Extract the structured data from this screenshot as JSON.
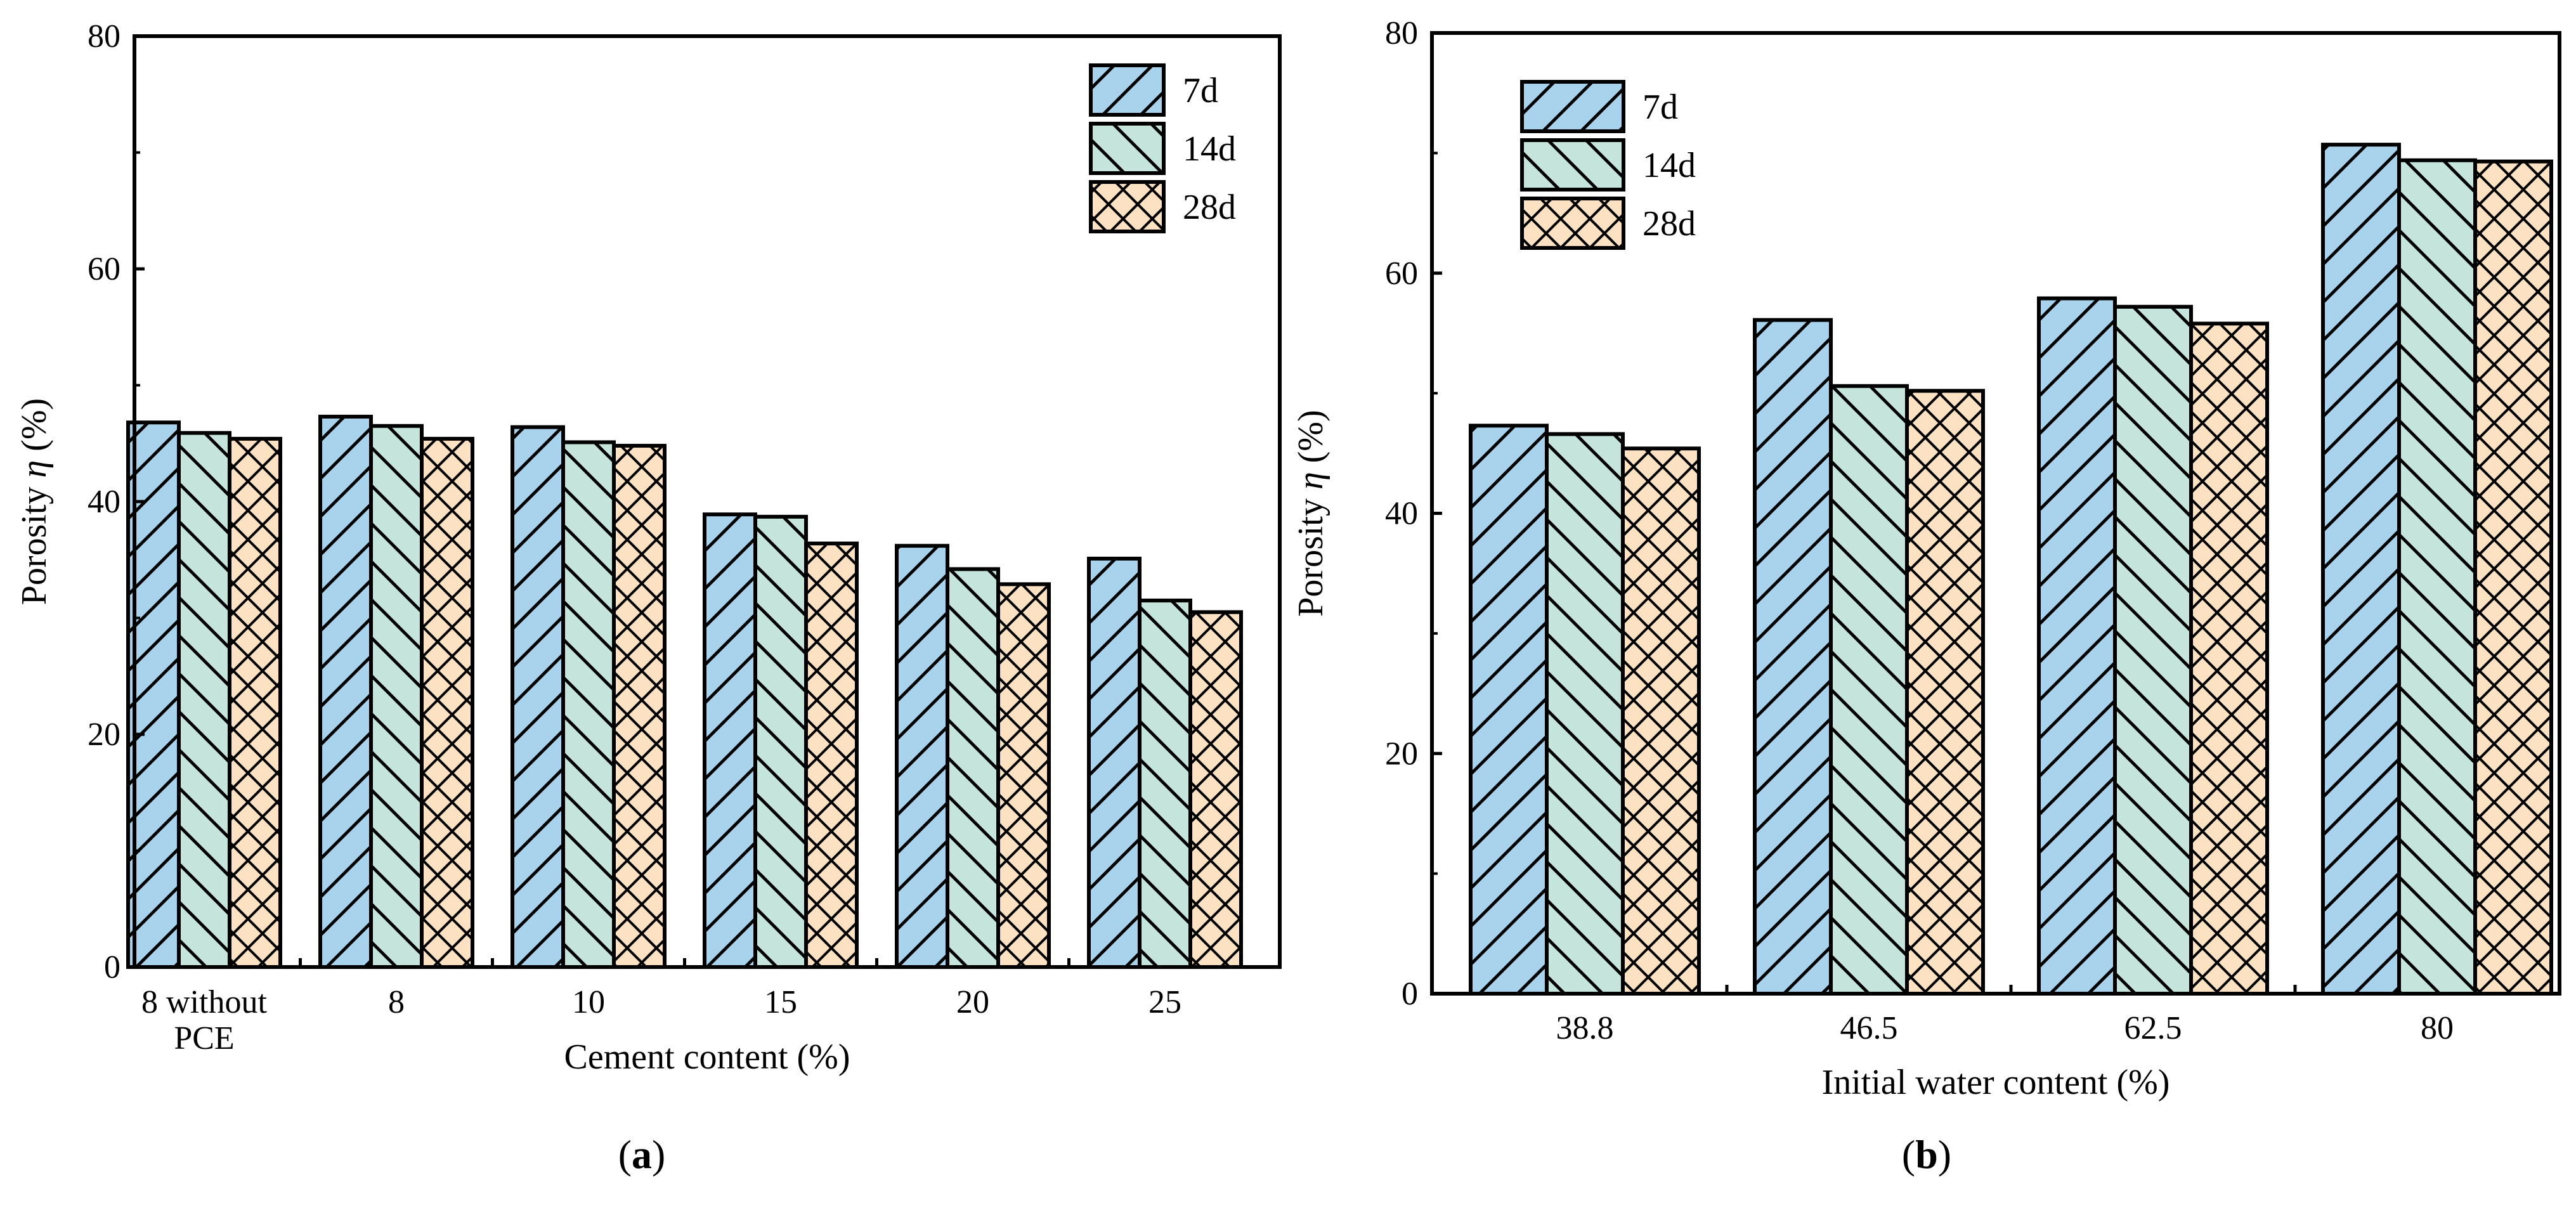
{
  "chart_data": [
    {
      "id": "a",
      "type": "bar",
      "panel_label": "a",
      "title": "",
      "xlabel": "Cement content (%)",
      "ylabel": "Porosity η (%)",
      "ylabel_parts": [
        "Porosity ",
        "η",
        " (%)"
      ],
      "ylim": [
        0,
        80
      ],
      "yticks": [
        "0",
        "20",
        "40",
        "60",
        "80"
      ],
      "categories": [
        [
          "8 without",
          "PCE"
        ],
        [
          "8"
        ],
        [
          "10"
        ],
        [
          "15"
        ],
        [
          "20"
        ],
        [
          "25"
        ]
      ],
      "legend_position": "top-right",
      "series": [
        {
          "name": "7d",
          "color": "#A9D3EC",
          "pattern": "forward-hatch",
          "values": [
            46.8,
            47.3,
            46.4,
            38.9,
            36.2,
            35.1
          ]
        },
        {
          "name": "14d",
          "color": "#C5E4DB",
          "pattern": "backward-hatch",
          "values": [
            45.9,
            46.5,
            45.1,
            38.7,
            34.2,
            31.5
          ]
        },
        {
          "name": "28d",
          "color": "#FCE2C3",
          "pattern": "cross-hatch",
          "values": [
            45.4,
            45.4,
            44.8,
            36.4,
            32.9,
            30.5
          ]
        }
      ]
    },
    {
      "id": "b",
      "type": "bar",
      "panel_label": "b",
      "title": "",
      "xlabel": "Initial water content (%)",
      "ylabel": "Porosity η (%)",
      "ylabel_parts": [
        "Porosity ",
        "η",
        " (%)"
      ],
      "ylim": [
        0,
        80
      ],
      "yticks": [
        "0",
        "20",
        "40",
        "60",
        "80"
      ],
      "categories": [
        [
          "38.8"
        ],
        [
          "46.5"
        ],
        [
          "62.5"
        ],
        [
          "80"
        ]
      ],
      "legend_position": "top-left",
      "series": [
        {
          "name": "7d",
          "color": "#A9D3EC",
          "pattern": "forward-hatch",
          "values": [
            47.3,
            56.1,
            57.9,
            70.7
          ]
        },
        {
          "name": "14d",
          "color": "#C5E4DB",
          "pattern": "backward-hatch",
          "values": [
            46.6,
            50.6,
            57.2,
            69.4
          ]
        },
        {
          "name": "28d",
          "color": "#FCE2C3",
          "pattern": "cross-hatch",
          "values": [
            45.4,
            50.2,
            55.8,
            69.3
          ]
        }
      ]
    }
  ]
}
